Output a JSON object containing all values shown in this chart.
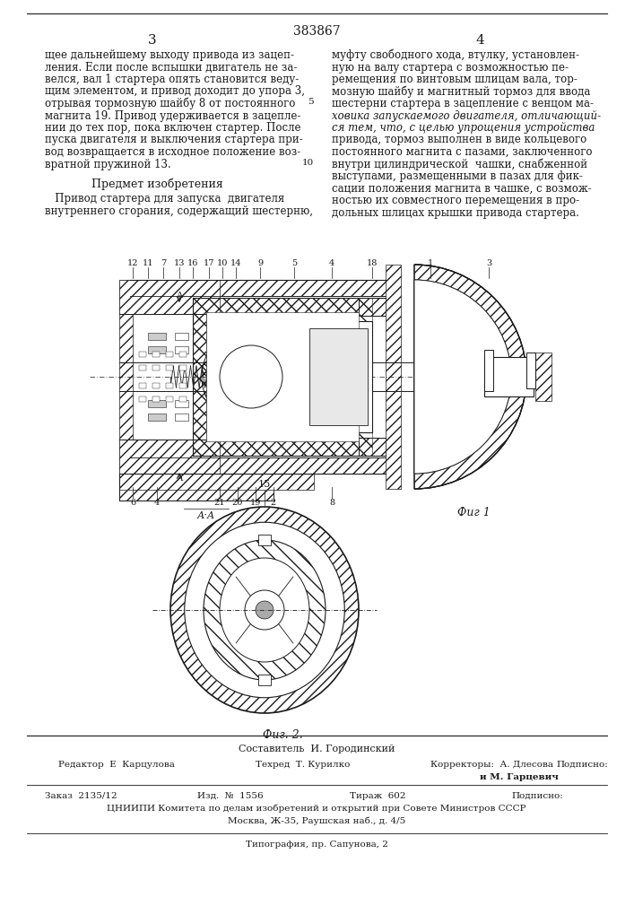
{
  "patent_number": "383867",
  "background_color": "#ffffff",
  "text_color": "#1a1a1a",
  "col_left_text": [
    "щее дальнейшему выходу привода из зацеп-",
    "ления. Если после вспышки двигатель не за-",
    "велся, вал 1 стартера опять становится веду-",
    "щим элементом, и привод доходит до упора 3,",
    "отрывая тормозную шайбу 8 от постоянного",
    "магнита 19. Привод удерживается в зацепле-",
    "нии до тех пор, пока включен стартер. После",
    "пуска двигателя и выключения стартера при-",
    "вод возвращается в исходное положение воз-",
    "вратной пружиной 13."
  ],
  "predmet_title": "Предмет изобретения",
  "predmet_text": [
    "   Привод стартера для запуска  двигателя",
    "внутреннего сгорания, содержащий шестерню,"
  ],
  "col_right_text": [
    "муфту свободного хода, втулку, установлен-",
    "ную на валу стартера с возможностью пе-",
    "ремещения по винтовым шлицам вала, тор-",
    "мозную шайбу и магнитный тормоз для ввода",
    "шестерни стартера в зацепление с венцом ма-",
    "ховика запускаемого двигателя, отличающий-",
    "ся тем, что, с целью упрощения устройства",
    "привода, тормоз выполнен в виде кольцевого",
    "постоянного магнита с пазами, заключенного",
    "внутри цилиндрической  чашки, снабженной",
    "выступами, размещенными в пазах для фик-",
    "сации положения магнита в чашке, с возмож-",
    "ностью их совместного перемещения в про-",
    "дольных шлицах крышки привода стартера."
  ],
  "fig1_label": "Фиг 1",
  "fig2_label": "Фиг. 2.",
  "footer_sestavitel": "Составитель  И. Городинский",
  "footer_editor": "Редактор  Е  Карцулова",
  "footer_tech": "Техред  Т. Курилко",
  "footer_corr1": "Корректоры:  А. Длесова",
  "footer_corr2": "и М. Гарцевич",
  "footer_podp": "Подписно:",
  "footer_order": "Заказ  2135/12",
  "footer_izd": "Изд.  №  1556",
  "footer_tirazh": "Тираж  602",
  "footer_org": "ЦНИИПИ Комитета по делам изобретений и открытий при Совете Министров СССР",
  "footer_address": "Москва, Ж-35, Раушская наб., д. 4/5",
  "footer_print": "Типография, пр. Сапунова, 2"
}
